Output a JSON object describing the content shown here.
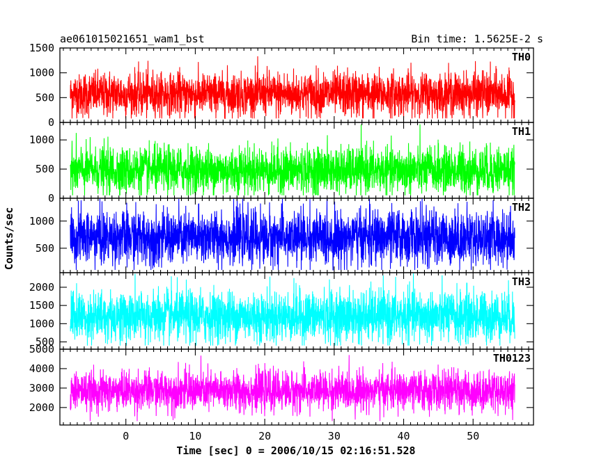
{
  "chart_data": {
    "type": "line",
    "title": "ae061015021651_wam1_bst",
    "bin_time_label": "Bin time: 1.5625E-2 s",
    "xlabel": "Time [sec] 0 = 2006/10/15 02:16:51.528",
    "ylabel": "Counts/sec",
    "xlim": [
      -9.5,
      58.7
    ],
    "x_data_range": [
      -8.0,
      56.0
    ],
    "x_ticks": [
      0,
      10,
      20,
      30,
      40,
      50
    ],
    "grid": false,
    "panels": [
      {
        "name": "TH0",
        "color": "#ff0000",
        "ylim": [
          0,
          1500
        ],
        "y_ticks": [
          0,
          500,
          1000,
          1500
        ],
        "mean": 570,
        "sigma": 220,
        "min_level": 80,
        "max_level": 1500
      },
      {
        "name": "TH1",
        "color": "#00ff00",
        "ylim": [
          0,
          1300
        ],
        "y_ticks": [
          0,
          500,
          1000
        ],
        "mean": 480,
        "sigma": 200,
        "min_level": 50,
        "max_level": 1300
      },
      {
        "name": "TH2",
        "color": "#0000ff",
        "ylim": [
          50,
          1420
        ],
        "y_ticks": [
          500,
          1000
        ],
        "mean": 700,
        "sigma": 250,
        "min_level": 100,
        "max_level": 1420
      },
      {
        "name": "TH3",
        "color": "#00ffff",
        "ylim": [
          300,
          2400
        ],
        "y_ticks": [
          500,
          1000,
          1500,
          2000
        ],
        "mean": 1200,
        "sigma": 350,
        "min_level": 400,
        "max_level": 2400
      },
      {
        "name": "TH0123",
        "color": "#ff00ff",
        "ylim": [
          1100,
          5000
        ],
        "y_ticks": [
          2000,
          3000,
          4000,
          5000
        ],
        "mean": 2850,
        "sigma": 500,
        "min_level": 1300,
        "max_level": 4700
      }
    ]
  }
}
